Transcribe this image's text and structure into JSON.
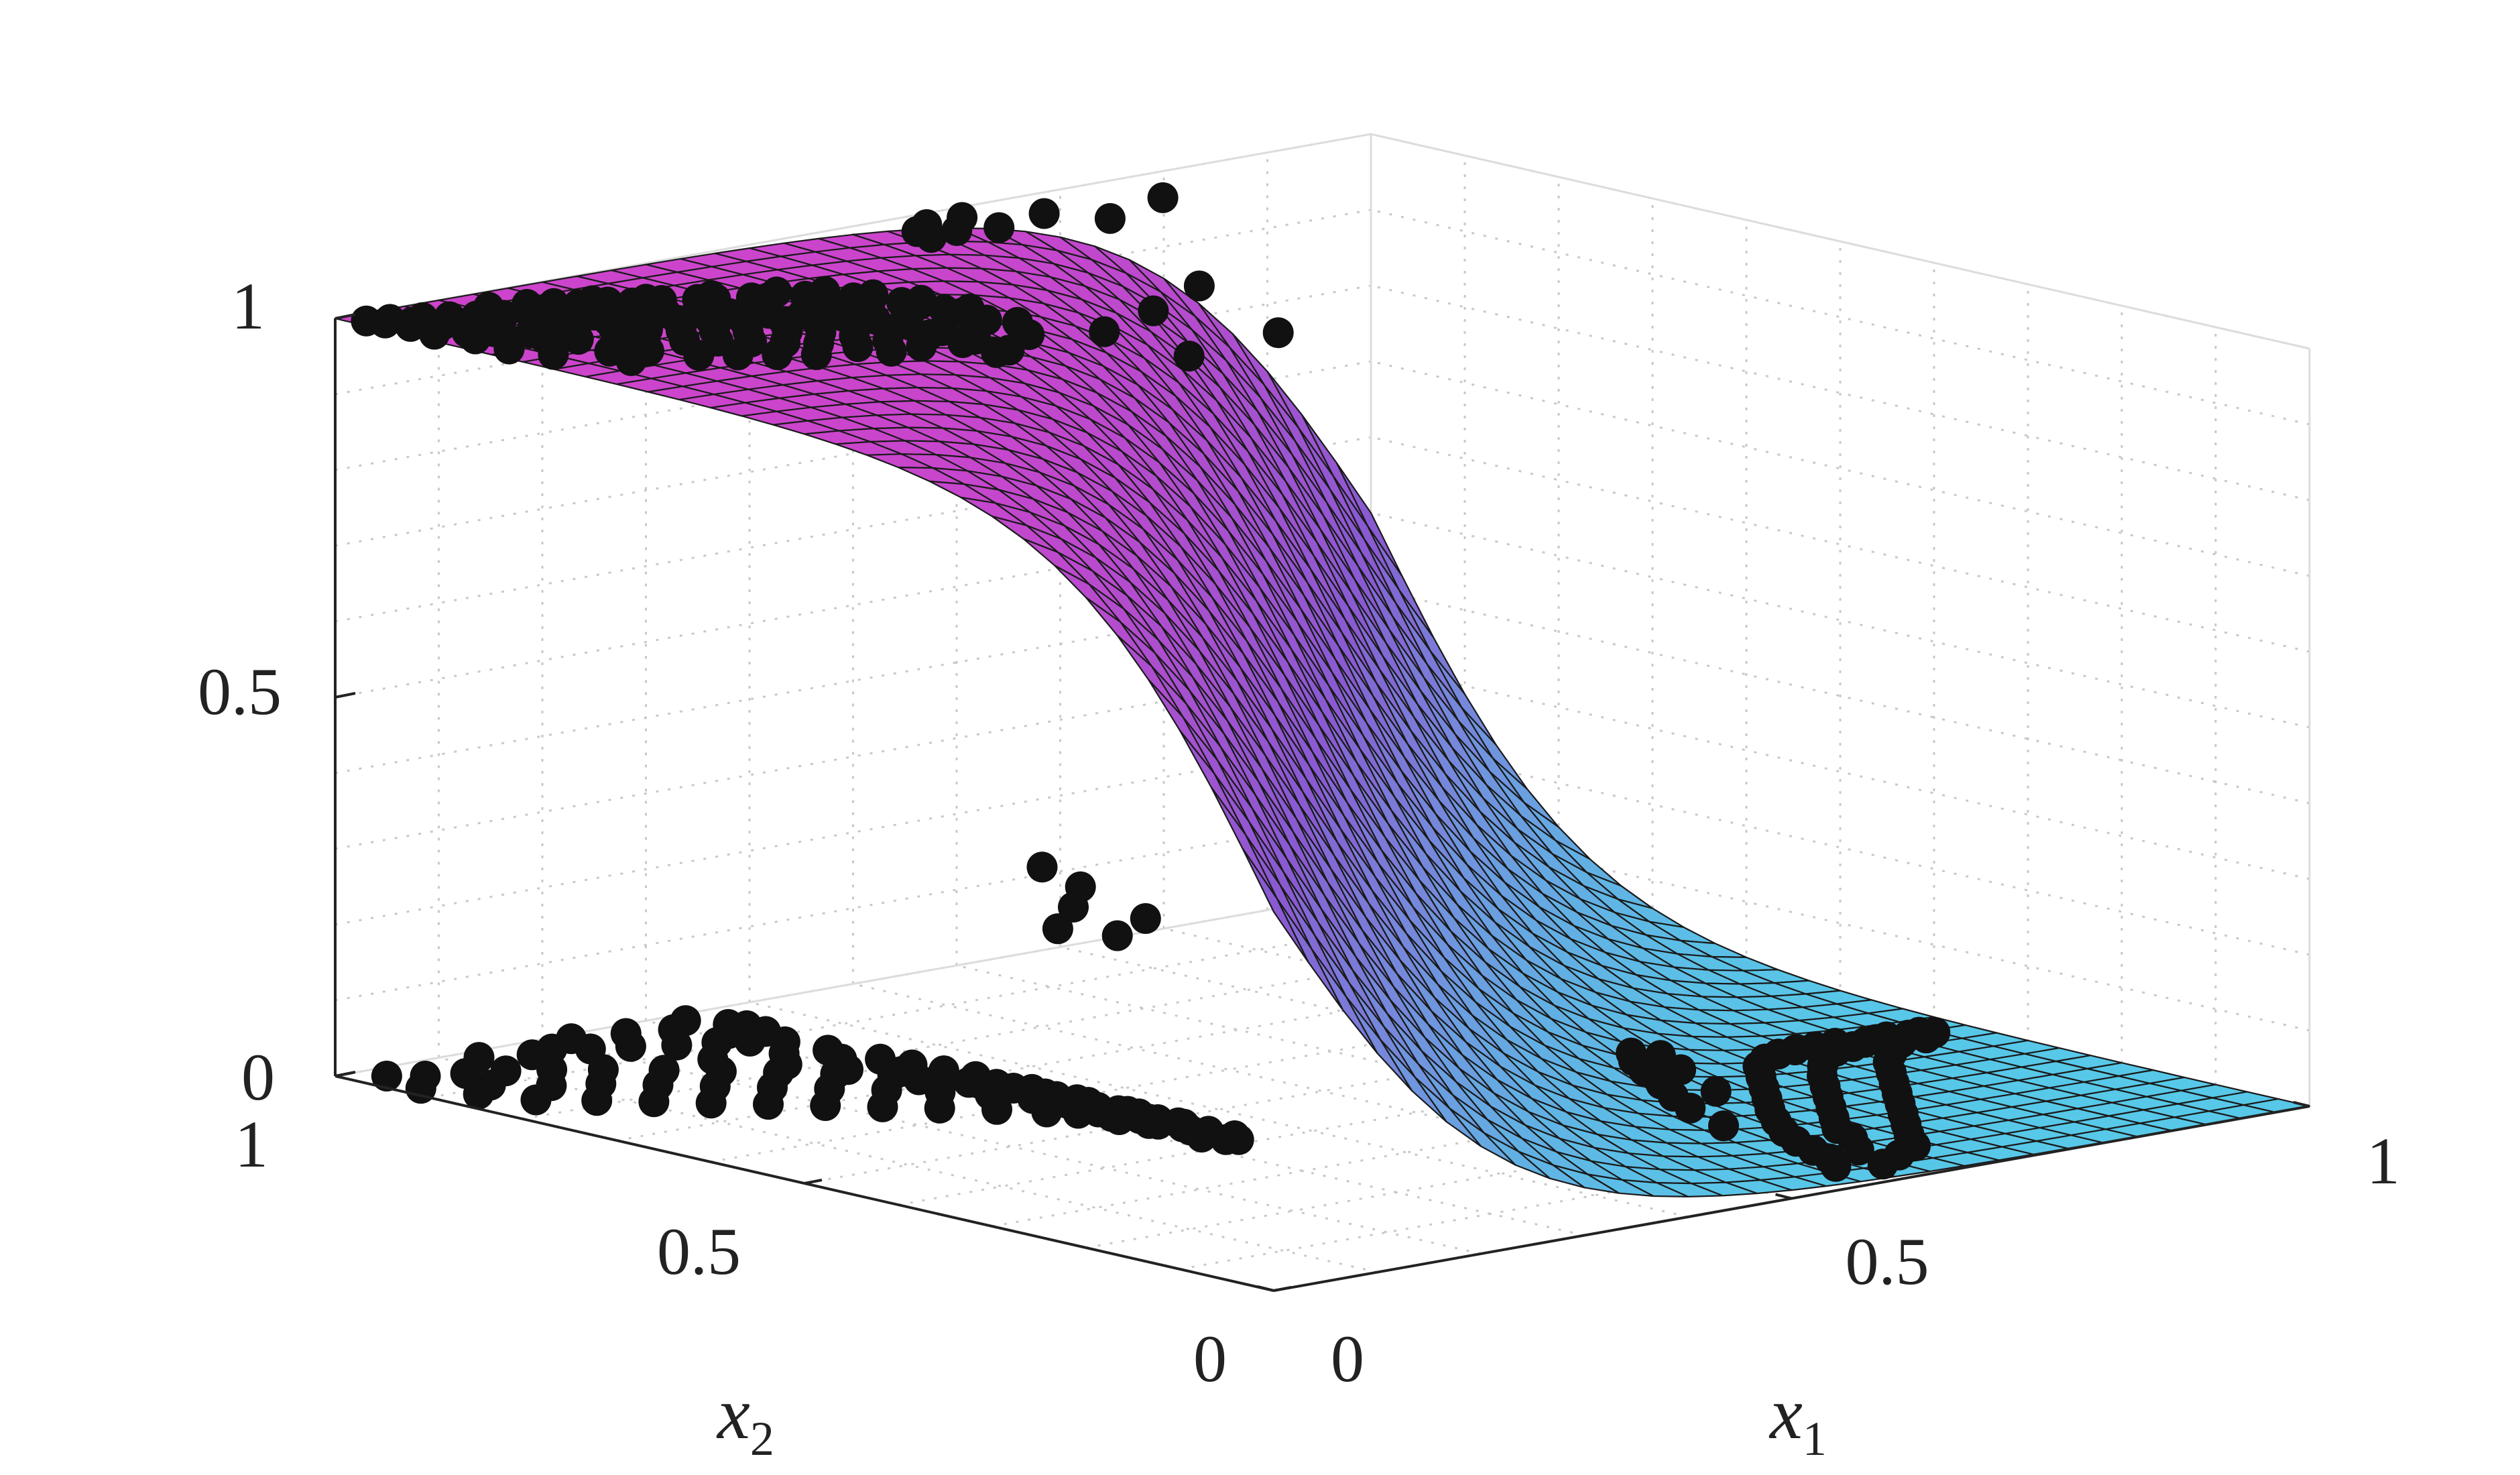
{
  "chart_data": {
    "type": "surface",
    "description_visible": false,
    "surface": {
      "model": "logistic",
      "x_grid_count": 30,
      "y_grid_count": 30,
      "colormap": [
        "#cc44cc",
        "#8a5ad2",
        "#57c8e8"
      ]
    },
    "axes": {
      "x": {
        "label_var": "x",
        "label_sub": "1",
        "lim": [
          0,
          1
        ],
        "ticks": [
          0,
          0.5,
          1
        ],
        "tick_labels": [
          "0",
          "0.5",
          "1"
        ]
      },
      "y": {
        "label_var": "x",
        "label_sub": "2",
        "lim": [
          0,
          1
        ],
        "ticks": [
          0,
          0.5,
          1
        ],
        "tick_labels": [
          "0",
          "0.5",
          "1"
        ]
      },
      "z": {
        "label": "",
        "lim": [
          0,
          1
        ],
        "ticks": [
          0,
          0.5,
          1
        ],
        "tick_labels": [
          "0",
          "0.5",
          "1"
        ]
      }
    },
    "grid": true,
    "points": {
      "marker": "filled-circle",
      "color": "#111111",
      "top_level": [
        [
          0.06,
          0.02
        ],
        [
          0.08,
          0.05
        ],
        [
          0.1,
          0.03
        ],
        [
          0.11,
          0.09
        ],
        [
          0.13,
          0.06
        ],
        [
          0.14,
          0.12
        ],
        [
          0.16,
          0.04
        ],
        [
          0.17,
          0.15
        ],
        [
          0.19,
          0.08
        ],
        [
          0.2,
          0.18
        ],
        [
          0.22,
          0.11
        ],
        [
          0.23,
          0.21
        ],
        [
          0.25,
          0.03
        ],
        [
          0.26,
          0.14
        ],
        [
          0.27,
          0.24
        ],
        [
          0.28,
          0.07
        ],
        [
          0.29,
          0.19
        ],
        [
          0.31,
          0.1
        ],
        [
          0.32,
          0.27
        ],
        [
          0.33,
          0.16
        ],
        [
          0.34,
          0.05
        ],
        [
          0.35,
          0.22
        ],
        [
          0.36,
          0.31
        ],
        [
          0.37,
          0.13
        ],
        [
          0.38,
          0.26
        ],
        [
          0.39,
          0.08
        ],
        [
          0.4,
          0.35
        ],
        [
          0.41,
          0.18
        ],
        [
          0.42,
          0.29
        ],
        [
          0.43,
          0.12
        ],
        [
          0.44,
          0.38
        ],
        [
          0.45,
          0.23
        ],
        [
          0.46,
          0.04
        ],
        [
          0.47,
          0.33
        ],
        [
          0.48,
          0.15
        ],
        [
          0.49,
          0.41
        ],
        [
          0.5,
          0.26
        ],
        [
          0.51,
          0.09
        ],
        [
          0.52,
          0.36
        ],
        [
          0.53,
          0.19
        ],
        [
          0.54,
          0.45
        ],
        [
          0.55,
          0.29
        ],
        [
          0.56,
          0.06
        ],
        [
          0.57,
          0.39
        ],
        [
          0.58,
          0.21
        ],
        [
          0.59,
          0.48
        ],
        [
          0.6,
          0.32
        ],
        [
          0.61,
          0.13
        ],
        [
          0.62,
          0.43
        ],
        [
          0.63,
          0.25
        ],
        [
          0.64,
          0.52
        ],
        [
          0.65,
          0.35
        ],
        [
          0.66,
          0.17
        ],
        [
          0.67,
          0.46
        ],
        [
          0.68,
          0.28
        ],
        [
          0.69,
          0.55
        ],
        [
          0.7,
          0.39
        ],
        [
          0.71,
          0.11
        ],
        [
          0.72,
          0.5
        ],
        [
          0.73,
          0.31
        ],
        [
          0.74,
          0.58
        ],
        [
          0.75,
          0.42
        ],
        [
          0.76,
          0.2
        ],
        [
          0.77,
          0.53
        ],
        [
          0.78,
          0.34
        ],
        [
          0.79,
          0.61
        ],
        [
          0.8,
          0.45
        ],
        [
          0.81,
          0.24
        ],
        [
          0.82,
          0.57
        ],
        [
          0.83,
          0.37
        ],
        [
          0.84,
          0.64
        ],
        [
          0.85,
          0.48
        ],
        [
          0.86,
          0.28
        ],
        [
          0.87,
          0.6
        ],
        [
          0.88,
          0.41
        ],
        [
          0.89,
          0.67
        ],
        [
          0.9,
          0.51
        ],
        [
          0.91,
          0.32
        ],
        [
          0.92,
          0.63
        ],
        [
          0.93,
          0.44
        ],
        [
          0.12,
          0.2
        ],
        [
          0.18,
          0.28
        ],
        [
          0.24,
          0.34
        ],
        [
          0.3,
          0.4
        ],
        [
          0.36,
          0.46
        ],
        [
          0.42,
          0.52
        ],
        [
          0.48,
          0.58
        ],
        [
          0.54,
          0.63
        ],
        [
          0.6,
          0.68
        ],
        [
          0.66,
          0.72
        ],
        [
          0.22,
          0.3
        ],
        [
          0.28,
          0.36
        ],
        [
          0.34,
          0.44
        ],
        [
          0.4,
          0.5
        ],
        [
          0.46,
          0.56
        ],
        [
          0.52,
          0.61
        ],
        [
          0.58,
          0.66
        ],
        [
          0.64,
          0.7
        ],
        [
          0.7,
          0.74
        ],
        [
          0.76,
          0.78
        ],
        [
          0.15,
          0.25
        ],
        [
          0.21,
          0.33
        ],
        [
          0.27,
          0.39
        ],
        [
          0.33,
          0.47
        ],
        [
          0.39,
          0.55
        ],
        [
          0.45,
          0.6
        ],
        [
          0.51,
          0.65
        ],
        [
          0.57,
          0.7
        ],
        [
          0.63,
          0.75
        ],
        [
          0.69,
          0.8
        ]
      ],
      "bottom_level": [
        [
          0.04,
          0.08
        ],
        [
          0.07,
          0.14
        ],
        [
          0.09,
          0.22
        ],
        [
          0.11,
          0.3
        ],
        [
          0.12,
          0.05
        ],
        [
          0.14,
          0.38
        ],
        [
          0.16,
          0.18
        ],
        [
          0.18,
          0.46
        ],
        [
          0.19,
          0.1
        ],
        [
          0.21,
          0.27
        ],
        [
          0.23,
          0.55
        ],
        [
          0.24,
          0.36
        ],
        [
          0.26,
          0.15
        ],
        [
          0.28,
          0.63
        ],
        [
          0.29,
          0.44
        ],
        [
          0.31,
          0.24
        ],
        [
          0.33,
          0.71
        ],
        [
          0.34,
          0.52
        ],
        [
          0.36,
          0.32
        ],
        [
          0.38,
          0.79
        ],
        [
          0.39,
          0.6
        ],
        [
          0.41,
          0.4
        ],
        [
          0.43,
          0.87
        ],
        [
          0.44,
          0.68
        ],
        [
          0.46,
          0.48
        ],
        [
          0.48,
          0.92
        ],
        [
          0.49,
          0.76
        ],
        [
          0.51,
          0.56
        ],
        [
          0.53,
          0.95
        ],
        [
          0.54,
          0.83
        ],
        [
          0.56,
          0.64
        ],
        [
          0.58,
          0.97
        ],
        [
          0.59,
          0.89
        ],
        [
          0.61,
          0.72
        ],
        [
          0.63,
          0.98
        ],
        [
          0.64,
          0.93
        ],
        [
          0.66,
          0.8
        ],
        [
          0.68,
          0.99
        ],
        [
          0.69,
          0.95
        ],
        [
          0.71,
          0.86
        ],
        [
          0.73,
          0.97
        ],
        [
          0.74,
          0.9
        ],
        [
          0.76,
          0.98
        ],
        [
          0.78,
          0.93
        ],
        [
          0.79,
          0.99
        ],
        [
          0.81,
          0.96
        ],
        [
          0.83,
          0.98
        ],
        [
          0.84,
          0.94
        ],
        [
          0.86,
          0.99
        ],
        [
          0.88,
          0.97
        ],
        [
          0.06,
          0.45
        ],
        [
          0.08,
          0.58
        ],
        [
          0.1,
          0.66
        ],
        [
          0.13,
          0.74
        ],
        [
          0.15,
          0.82
        ],
        [
          0.17,
          0.88
        ],
        [
          0.2,
          0.93
        ],
        [
          0.22,
          0.7
        ],
        [
          0.25,
          0.85
        ],
        [
          0.27,
          0.94
        ],
        [
          0.3,
          0.78
        ],
        [
          0.32,
          0.9
        ],
        [
          0.35,
          0.96
        ],
        [
          0.37,
          0.84
        ],
        [
          0.4,
          0.97
        ],
        [
          0.42,
          0.91
        ],
        [
          0.45,
          0.98
        ],
        [
          0.47,
          0.88
        ],
        [
          0.5,
          0.99
        ],
        [
          0.52,
          0.94
        ],
        [
          0.55,
          0.97
        ],
        [
          0.57,
          0.92
        ],
        [
          0.6,
          0.99
        ],
        [
          0.62,
          0.96
        ],
        [
          0.65,
          0.98
        ],
        [
          0.67,
          0.93
        ],
        [
          0.7,
          0.99
        ],
        [
          0.72,
          0.97
        ],
        [
          0.75,
          0.94
        ],
        [
          0.77,
          0.99
        ],
        [
          0.8,
          0.92
        ],
        [
          0.82,
          0.97
        ],
        [
          0.85,
          0.95
        ],
        [
          0.87,
          0.99
        ],
        [
          0.9,
          0.96
        ],
        [
          0.92,
          0.98
        ],
        [
          0.94,
          0.93
        ],
        [
          0.96,
          0.99
        ],
        [
          0.97,
          0.95
        ],
        [
          0.98,
          0.97
        ],
        [
          0.03,
          0.35
        ],
        [
          0.05,
          0.52
        ],
        [
          0.02,
          0.62
        ],
        [
          0.04,
          0.74
        ],
        [
          0.06,
          0.84
        ],
        [
          0.03,
          0.92
        ],
        [
          0.08,
          0.96
        ],
        [
          0.1,
          0.98
        ],
        [
          0.12,
          0.9
        ],
        [
          0.14,
          0.97
        ]
      ],
      "floating": [
        [
          0.02,
          0.02,
          0.98
        ],
        [
          0.03,
          0.05,
          0.99
        ],
        [
          0.05,
          0.03,
          0.97
        ],
        [
          0.08,
          0.1,
          0.98
        ],
        [
          0.12,
          0.04,
          0.99
        ],
        [
          0.2,
          0.06,
          0.97
        ],
        [
          0.3,
          0.08,
          0.98
        ],
        [
          0.45,
          0.1,
          0.96
        ],
        [
          0.6,
          0.05,
          0.97
        ],
        [
          0.62,
          0.2,
          0.86
        ],
        [
          0.5,
          0.22,
          0.84
        ],
        [
          0.4,
          0.18,
          0.82
        ],
        [
          0.72,
          0.4,
          0.8
        ],
        [
          0.55,
          0.3,
          0.78
        ],
        [
          0.15,
          0.4,
          0.15
        ],
        [
          0.18,
          0.5,
          0.1
        ],
        [
          0.22,
          0.45,
          0.12
        ],
        [
          0.12,
          0.55,
          0.08
        ],
        [
          0.25,
          0.58,
          0.06
        ],
        [
          0.3,
          0.62,
          0.08
        ]
      ]
    }
  },
  "labels": {
    "z_ticks": [
      "0",
      "0.5",
      "1"
    ],
    "x1_ticks": [
      "0",
      "0.5",
      "1"
    ],
    "x2_ticks": [
      "1",
      "0.5",
      "0"
    ],
    "x1_var": "x",
    "x1_sub": "1",
    "x2_var": "x",
    "x2_sub": "2"
  }
}
